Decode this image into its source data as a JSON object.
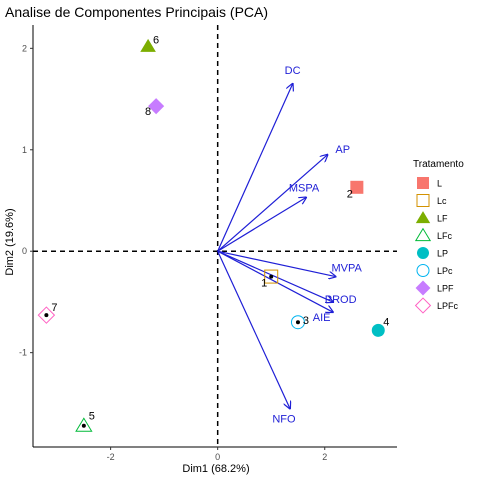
{
  "chart_data": {
    "type": "scatter",
    "title": "Analise de Componentes Principais (PCA)",
    "xlabel": "Dim1 (68.2%)",
    "ylabel": "Dim2 (19.6%)",
    "xlim": [
      -3.45,
      3.35
    ],
    "ylim": [
      -1.93,
      2.23
    ],
    "x_ticks": [
      "-2",
      "0",
      "2"
    ],
    "y_ticks": [
      "-1",
      "0",
      "1",
      "2"
    ],
    "x_tick_values": [
      -2,
      0,
      2
    ],
    "y_tick_values": [
      -1,
      0,
      1,
      2
    ],
    "reference_lines": {
      "x": 0,
      "y": 0,
      "style": "dashed"
    },
    "legend": {
      "title": "Tratamento",
      "placement": "right",
      "entries": [
        {
          "label": "L",
          "shape": "square-filled",
          "color": "#F8766D"
        },
        {
          "label": "Lc",
          "shape": "square-open",
          "color": "#D39200"
        },
        {
          "label": "LF",
          "shape": "triangle-filled",
          "color": "#7CAE00"
        },
        {
          "label": "LFc",
          "shape": "triangle-open",
          "color": "#00BA38"
        },
        {
          "label": "LP",
          "shape": "circle-filled",
          "color": "#00BFC4"
        },
        {
          "label": "LPc",
          "shape": "circle-open",
          "color": "#00B4F0"
        },
        {
          "label": "LPF",
          "shape": "diamond-filled",
          "color": "#C77CFF"
        },
        {
          "label": "LPFc",
          "shape": "diamond-open",
          "color": "#FF61C3"
        }
      ]
    },
    "individuals": [
      {
        "label": "1",
        "group": "Lc",
        "x": 1.0,
        "y": -0.25
      },
      {
        "label": "2",
        "group": "L",
        "x": 2.6,
        "y": 0.63
      },
      {
        "label": "3",
        "group": "LPc",
        "x": 1.5,
        "y": -0.7
      },
      {
        "label": "4",
        "group": "LP",
        "x": 3.0,
        "y": -0.78
      },
      {
        "label": "5",
        "group": "LFc",
        "x": -2.5,
        "y": -1.72
      },
      {
        "label": "6",
        "group": "LF",
        "x": -1.3,
        "y": 2.02
      },
      {
        "label": "7",
        "group": "LPFc",
        "x": -3.2,
        "y": -0.63
      },
      {
        "label": "8",
        "group": "LPF",
        "x": -1.15,
        "y": 1.43
      }
    ],
    "centroid_points": [
      {
        "x": 1.0,
        "y": -0.25
      },
      {
        "x": 1.5,
        "y": -0.7
      },
      {
        "x": -2.5,
        "y": -1.72
      },
      {
        "x": -3.2,
        "y": -0.63
      }
    ],
    "variables": [
      {
        "name": "DC",
        "x": 1.4,
        "y": 1.65
      },
      {
        "name": "AP",
        "x": 2.05,
        "y": 0.95
      },
      {
        "name": "MSPA",
        "x": 1.65,
        "y": 0.53
      },
      {
        "name": "MVPA",
        "x": 2.2,
        "y": -0.25
      },
      {
        "name": "PROD",
        "x": 2.15,
        "y": -0.5
      },
      {
        "name": "AIE",
        "x": 2.15,
        "y": -0.6
      },
      {
        "name": "NFO",
        "x": 1.35,
        "y": -1.55
      }
    ],
    "colors": {
      "arrows": "#1f1fd6",
      "dashed": "#000000",
      "points_center": "#000000"
    }
  }
}
